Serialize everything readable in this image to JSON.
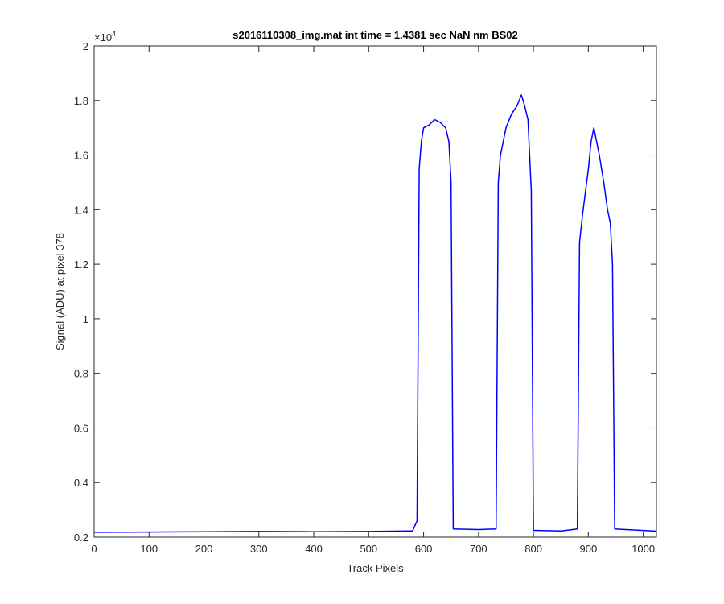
{
  "chart_data": {
    "type": "line",
    "title": "s2016110308_img.mat int time = 1.4381 sec  NaN nm BS02",
    "xlabel": "Track Pixels",
    "ylabel": "Signal (ADU) at pixel 378",
    "xlim": [
      0,
      1024
    ],
    "ylim": [
      2000,
      20000
    ],
    "y_exponent_label": {
      "base": "×10",
      "exp": "4"
    },
    "xticks": [
      0,
      100,
      200,
      300,
      400,
      500,
      600,
      700,
      800,
      900,
      1000
    ],
    "xtick_labels": [
      "0",
      "100",
      "200",
      "300",
      "400",
      "500",
      "600",
      "700",
      "800",
      "900",
      "1000"
    ],
    "yticks": [
      2000,
      4000,
      6000,
      8000,
      10000,
      12000,
      14000,
      16000,
      18000,
      20000
    ],
    "ytick_labels": [
      "0.2",
      "0.4",
      "0.6",
      "0.8",
      "1",
      "1.2",
      "1.4",
      "1.6",
      "1.8",
      "2"
    ],
    "grid": false,
    "line_color": "#0000ff",
    "series": [
      {
        "x": [
          0,
          100,
          200,
          300,
          400,
          500,
          580,
          588,
          592,
          596,
          600,
          610,
          620,
          630,
          640,
          646,
          650,
          654,
          700,
          732,
          736,
          740,
          750,
          760,
          770,
          778,
          784,
          790,
          796,
          800,
          850,
          880,
          884,
          890,
          900,
          905,
          910,
          920,
          928,
          935,
          940,
          944,
          948,
          1024
        ],
        "y": [
          2180,
          2190,
          2200,
          2210,
          2200,
          2210,
          2230,
          2600,
          15500,
          16500,
          17000,
          17100,
          17300,
          17200,
          17000,
          16500,
          15000,
          2300,
          2280,
          2300,
          15000,
          16000,
          17000,
          17500,
          17800,
          18200,
          17800,
          17300,
          14700,
          2250,
          2230,
          2300,
          12800,
          13900,
          15500,
          16500,
          17000,
          16000,
          15000,
          14000,
          13500,
          12000,
          2300,
          2220
        ]
      }
    ]
  }
}
